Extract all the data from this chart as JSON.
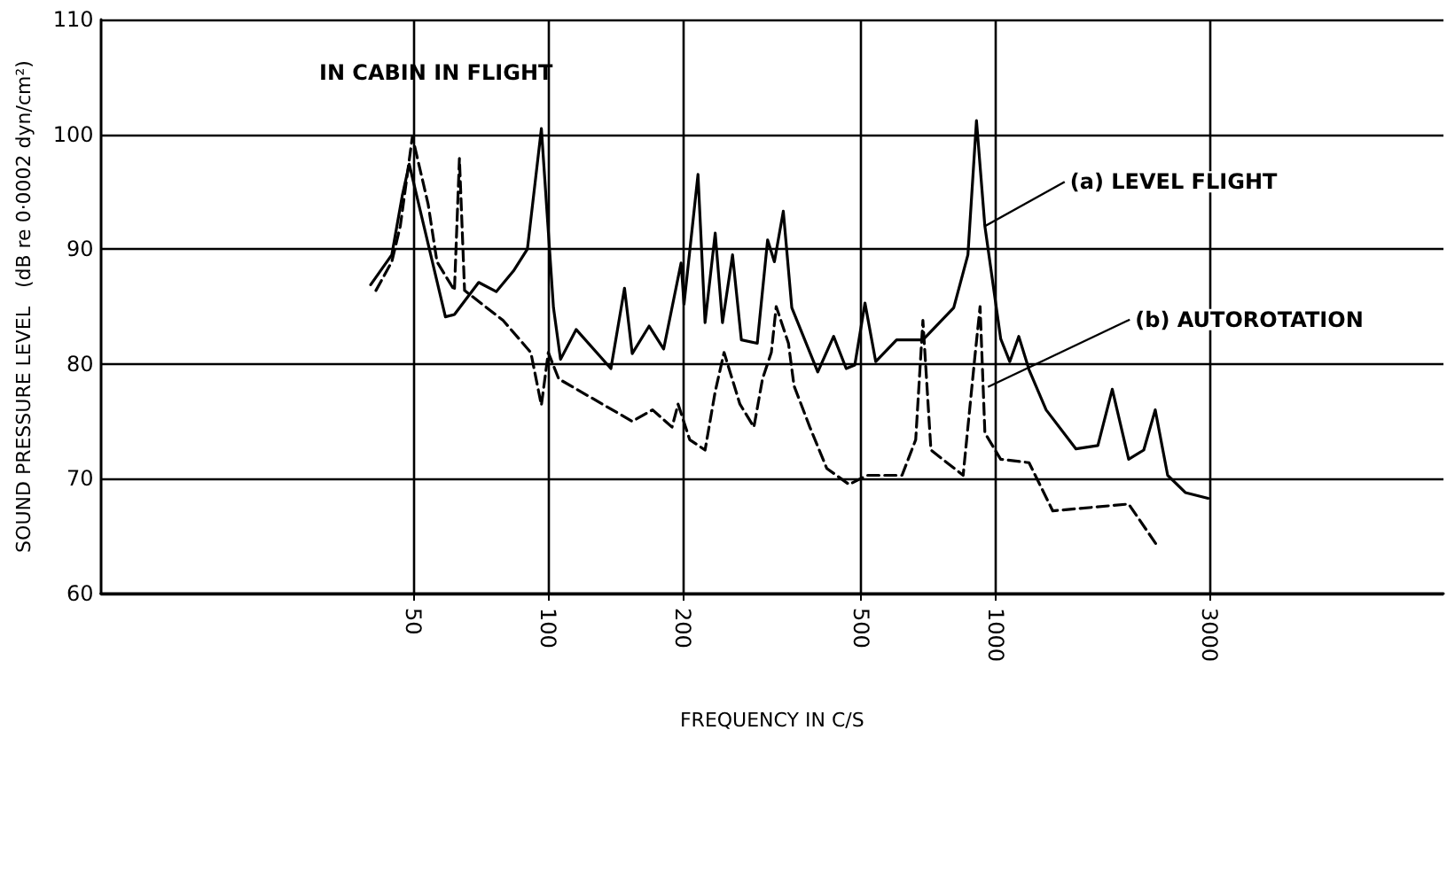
{
  "chart_data": {
    "type": "line",
    "title": "IN CABIN IN FLIGHT",
    "xlabel": "FREQUENCY IN C/S",
    "ylabel": "SOUND PRESSURE LEVEL   (dB re 0·0002 dyn/cm²)",
    "log": "x",
    "grid": true,
    "legend": false,
    "marker": "none",
    "xlim": [
      10,
      10000
    ],
    "xticks": [
      50,
      100,
      200,
      500,
      1000,
      3000
    ],
    "ylim": [
      60,
      110
    ],
    "yticks": [
      60,
      70,
      80,
      90,
      100,
      110
    ],
    "annotations": [
      {
        "text": "(a) LEVEL FLIGHT",
        "x": 945,
        "y": 92
      },
      {
        "text": "(b) AUTOROTATION",
        "x": 960,
        "y": 78
      }
    ],
    "series": [
      {
        "color": "#000000",
        "line_style": "solid",
        "x": [
          40.1,
          44.7,
          47.2,
          48.9,
          58.9,
          61.7,
          69.9,
          76.5,
          83.6,
          89.8,
          96.5,
          102.7,
          106.5,
          115.4,
          138,
          148,
          154,
          168,
          181,
          198,
          201,
          216,
          224,
          236,
          245,
          258,
          270,
          293,
          309,
          320,
          335,
          350,
          400,
          434,
          463,
          484,
          510,
          539,
          600,
          687,
          805,
          866,
          905,
          945,
          1025,
          1074,
          1125,
          1186,
          1295,
          1510,
          1690,
          1820,
          1980,
          2140,
          2270,
          2420,
          2650,
          2980
        ],
        "values": [
          86.9,
          89.5,
          94.7,
          97.4,
          84.1,
          84.3,
          87.1,
          86.3,
          88.1,
          90.0,
          100.5,
          84.9,
          80.4,
          83.0,
          79.6,
          86.6,
          80.9,
          83.3,
          81.3,
          88.8,
          85.2,
          96.5,
          83.6,
          91.4,
          83.6,
          89.5,
          82.1,
          81.8,
          90.8,
          88.9,
          93.3,
          84.9,
          79.3,
          82.4,
          79.6,
          79.9,
          85.3,
          80.2,
          82.1,
          82.1,
          84.9,
          89.5,
          101.2,
          92.0,
          82.2,
          80.2,
          82.4,
          79.5,
          76.0,
          72.6,
          72.9,
          77.8,
          71.7,
          72.5,
          76.0,
          70.3,
          68.8,
          68.3
        ]
      },
      {
        "color": "#000000",
        "line_style": "dashed",
        "x": [
          41.2,
          44.7,
          46.7,
          49.7,
          53.9,
          56.4,
          61.7,
          63.3,
          65.0,
          79.2,
          91.4,
          96.5,
          100,
          105.5,
          154,
          171,
          189,
          195,
          207,
          224,
          236,
          247,
          268,
          288,
          301,
          315,
          323,
          344,
          354,
          384,
          419,
          470,
          515,
          617,
          662,
          687,
          716,
          845,
          898,
          922,
          945,
          1025,
          1186,
          1340,
          1980,
          2300
        ],
        "values": [
          86.4,
          88.9,
          92.0,
          99.8,
          93.9,
          88.9,
          86.4,
          97.9,
          86.4,
          83.8,
          81.0,
          76.4,
          81.0,
          78.7,
          75.0,
          76.0,
          74.5,
          76.5,
          73.4,
          72.5,
          77.6,
          81.0,
          76.5,
          74.5,
          78.7,
          81.0,
          85.0,
          81.8,
          78.1,
          74.5,
          70.9,
          69.5,
          70.3,
          70.3,
          73.4,
          83.8,
          72.5,
          70.3,
          80.7,
          85.0,
          74.0,
          71.7,
          71.4,
          67.2,
          67.8,
          64.1
        ]
      }
    ]
  }
}
